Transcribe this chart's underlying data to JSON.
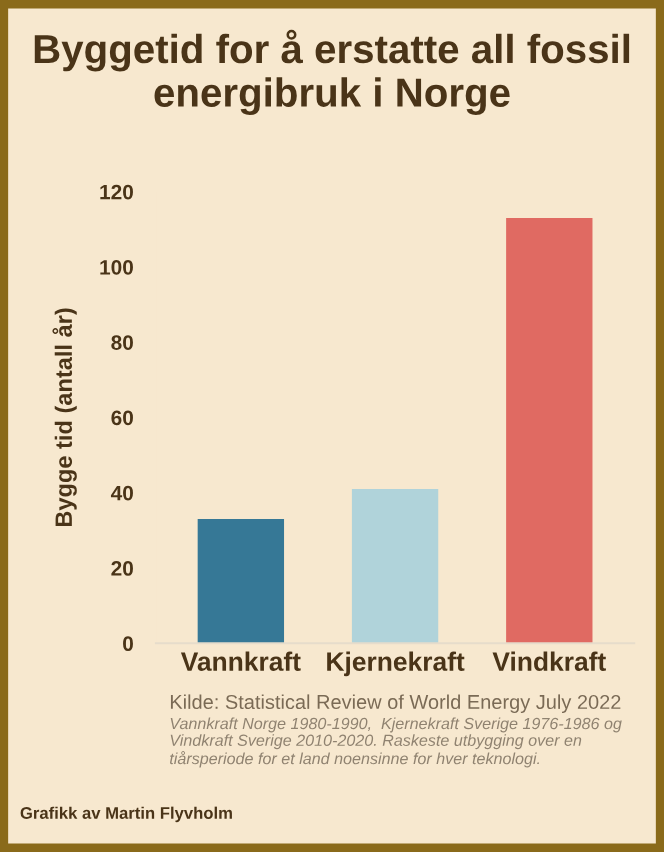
{
  "chart_data": {
    "type": "bar",
    "title": "Byggetid for å erstatte all fossil energibruk i Norge",
    "ylabel": "Bygge tid (antall år)",
    "categories": [
      "Vannkraft",
      "Kjernekraft",
      "Vindkraft"
    ],
    "values": [
      33,
      41,
      113
    ],
    "colors": [
      "#367896",
      "#b0d3da",
      "#e06a62"
    ],
    "ylim": [
      0,
      120
    ],
    "yticks": [
      0,
      20,
      40,
      60,
      80,
      100,
      120
    ],
    "grid": false,
    "annotations": [
      "Kilde: Statistical Review of World Energy July 2022",
      "Vannkraft Norge 1980-1990,  Kjernekraft Sverige 1976-1986 og Vindkraft Sverige 2010-2020. Raskeste utbygging over en tiårsperiode for et land noensinne for hver teknologi.",
      "Grafikk av Martin Flyvholm"
    ]
  }
}
